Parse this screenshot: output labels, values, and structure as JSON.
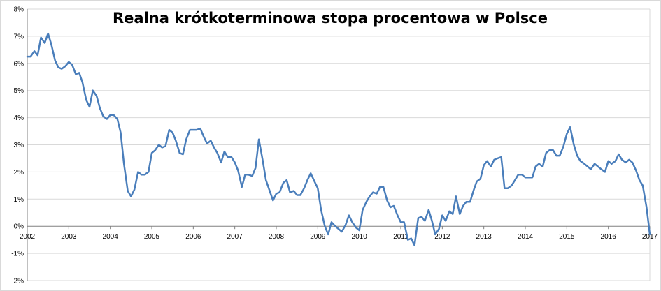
{
  "chart_data": {
    "type": "line",
    "title": "Realna krótkoterminowa stopa procentowa w Polsce",
    "xlabel": "",
    "ylabel": "",
    "ylim": [
      -2,
      8
    ],
    "xlim": [
      2002,
      2017
    ],
    "grid": true,
    "legend": "none",
    "y_ticks": [
      "-2%",
      "-1%",
      "0%",
      "1%",
      "2%",
      "3%",
      "4%",
      "5%",
      "6%",
      "7%",
      "8%"
    ],
    "x_ticks": [
      "2002",
      "2003",
      "2004",
      "2005",
      "2006",
      "2007",
      "2008",
      "2009",
      "2010",
      "2011",
      "2012",
      "2013",
      "2014",
      "2015",
      "2016",
      "2017"
    ],
    "colors": {
      "line": "#4a7ebb",
      "grid": "#d9d9d9",
      "axis": "#808080"
    },
    "series": [
      {
        "x": [
          2002.0,
          2002.08,
          2002.17,
          2002.25,
          2002.33,
          2002.42,
          2002.5,
          2002.58,
          2002.67,
          2002.75,
          2002.83,
          2002.92,
          2003.0,
          2003.08,
          2003.17,
          2003.25,
          2003.33,
          2003.42,
          2003.5,
          2003.58,
          2003.67,
          2003.75,
          2003.83,
          2003.92,
          2004.0,
          2004.08,
          2004.17,
          2004.25,
          2004.33,
          2004.42,
          2004.5,
          2004.58,
          2004.67,
          2004.75,
          2004.83,
          2004.92,
          2005.0,
          2005.08,
          2005.17,
          2005.25,
          2005.33,
          2005.42,
          2005.5,
          2005.58,
          2005.67,
          2005.75,
          2005.83,
          2005.92,
          2006.0,
          2006.08,
          2006.17,
          2006.25,
          2006.33,
          2006.42,
          2006.5,
          2006.58,
          2006.67,
          2006.75,
          2006.83,
          2006.92,
          2007.0,
          2007.08,
          2007.17,
          2007.25,
          2007.33,
          2007.42,
          2007.5,
          2007.58,
          2007.67,
          2007.75,
          2007.83,
          2007.92,
          2008.0,
          2008.08,
          2008.17,
          2008.25,
          2008.33,
          2008.42,
          2008.5,
          2008.58,
          2008.67,
          2008.75,
          2008.83,
          2008.92,
          2009.0,
          2009.08,
          2009.17,
          2009.25,
          2009.33,
          2009.42,
          2009.5,
          2009.58,
          2009.67,
          2009.75,
          2009.83,
          2009.92,
          2010.0,
          2010.08,
          2010.17,
          2010.25,
          2010.33,
          2010.42,
          2010.5,
          2010.58,
          2010.67,
          2010.75,
          2010.83,
          2010.92,
          2011.0,
          2011.08,
          2011.17,
          2011.25,
          2011.33,
          2011.42,
          2011.5,
          2011.58,
          2011.67,
          2011.75,
          2011.83,
          2011.92,
          2012.0,
          2012.08,
          2012.17,
          2012.25,
          2012.33,
          2012.42,
          2012.5,
          2012.58,
          2012.67,
          2012.75,
          2012.83,
          2012.92,
          2013.0,
          2013.08,
          2013.17,
          2013.25,
          2013.33,
          2013.42,
          2013.5,
          2013.58,
          2013.67,
          2013.75,
          2013.83,
          2013.92,
          2014.0,
          2014.08,
          2014.17,
          2014.25,
          2014.33,
          2014.42,
          2014.5,
          2014.58,
          2014.67,
          2014.75,
          2014.83,
          2014.92,
          2015.0,
          2015.08,
          2015.17,
          2015.25,
          2015.33,
          2015.42,
          2015.5,
          2015.58,
          2015.67,
          2015.75,
          2015.83,
          2015.92,
          2016.0,
          2016.08,
          2016.17,
          2016.25,
          2016.33,
          2016.42,
          2016.5,
          2016.58,
          2016.67,
          2016.75,
          2016.83,
          2016.92,
          2017.0
        ],
        "values": [
          6.25,
          6.25,
          6.45,
          6.3,
          6.95,
          6.75,
          7.1,
          6.7,
          6.1,
          5.85,
          5.8,
          5.9,
          6.05,
          5.95,
          5.6,
          5.65,
          5.3,
          4.65,
          4.4,
          5.0,
          4.8,
          4.35,
          4.05,
          3.95,
          4.1,
          4.1,
          3.95,
          3.45,
          2.3,
          1.3,
          1.1,
          1.35,
          2.0,
          1.9,
          1.9,
          2.0,
          2.7,
          2.8,
          3.0,
          2.9,
          2.95,
          3.55,
          3.45,
          3.15,
          2.7,
          2.65,
          3.2,
          3.55,
          3.55,
          3.55,
          3.6,
          3.3,
          3.05,
          3.15,
          2.9,
          2.7,
          2.35,
          2.75,
          2.55,
          2.55,
          2.35,
          2.05,
          1.45,
          1.9,
          1.9,
          1.85,
          2.15,
          3.2,
          2.45,
          1.7,
          1.35,
          0.95,
          1.2,
          1.25,
          1.6,
          1.7,
          1.25,
          1.3,
          1.15,
          1.15,
          1.4,
          1.7,
          1.95,
          1.65,
          1.4,
          0.6,
          0.0,
          -0.3,
          0.15,
          0.0,
          -0.1,
          -0.2,
          0.05,
          0.4,
          0.15,
          -0.05,
          -0.15,
          0.6,
          0.9,
          1.1,
          1.25,
          1.2,
          1.45,
          1.45,
          0.95,
          0.7,
          0.75,
          0.4,
          0.15,
          0.15,
          -0.5,
          -0.45,
          -0.7,
          0.3,
          0.35,
          0.2,
          0.6,
          0.2,
          -0.3,
          -0.1,
          0.4,
          0.2,
          0.55,
          0.45,
          1.1,
          0.45,
          0.75,
          0.9,
          0.9,
          1.3,
          1.65,
          1.75,
          2.25,
          2.4,
          2.2,
          2.45,
          2.5,
          2.55,
          1.4,
          1.4,
          1.5,
          1.7,
          1.9,
          1.9,
          1.8,
          1.8,
          1.8,
          2.2,
          2.3,
          2.2,
          2.7,
          2.8,
          2.8,
          2.6,
          2.6,
          2.95,
          3.4,
          3.65,
          3.0,
          2.6,
          2.4,
          2.3,
          2.2,
          2.1,
          2.3,
          2.2,
          2.1,
          2.0,
          2.4,
          2.3,
          2.4,
          2.65,
          2.45,
          2.35,
          2.45,
          2.35,
          2.05,
          1.7,
          1.5,
          0.7,
          -0.3
        ]
      }
    ]
  }
}
